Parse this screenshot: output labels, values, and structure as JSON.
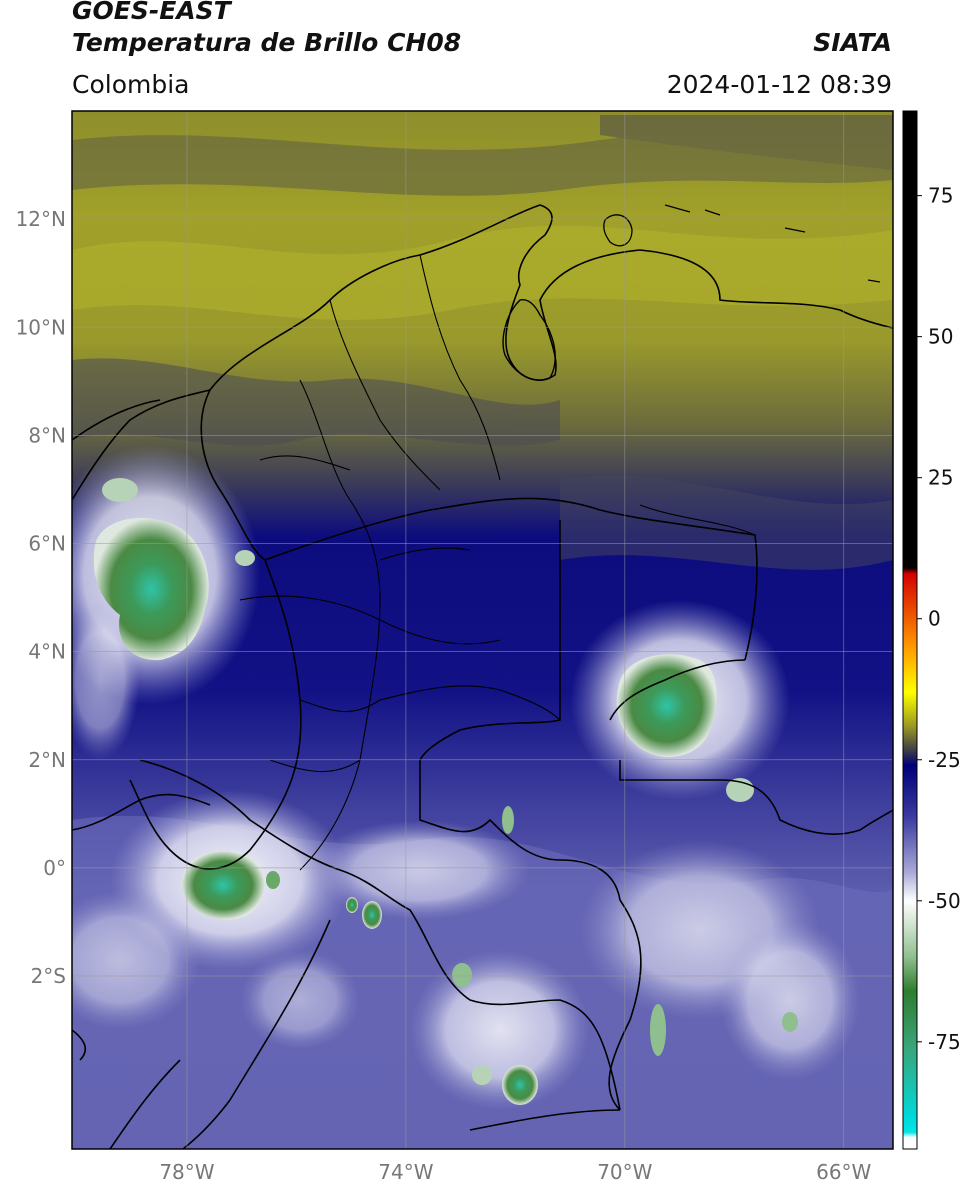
{
  "header": {
    "satellite": "GOES-EAST",
    "product": "Temperatura de Brillo CH08",
    "region": "Colombia",
    "brand": "SIATA",
    "timestamp": "2024-01-12 08:39"
  },
  "axes": {
    "lat_ticks": [
      {
        "label": "12°N",
        "lat": 12
      },
      {
        "label": "10°N",
        "lat": 10
      },
      {
        "label": "8°N",
        "lat": 8
      },
      {
        "label": "6°N",
        "lat": 6
      },
      {
        "label": "4°N",
        "lat": 4
      },
      {
        "label": "2°N",
        "lat": 2
      },
      {
        "label": "0°",
        "lat": 0
      },
      {
        "label": "2°S",
        "lat": -2
      }
    ],
    "lon_ticks": [
      {
        "label": "78°W",
        "lon": -78
      },
      {
        "label": "74°W",
        "lon": -74
      },
      {
        "label": "70°W",
        "lon": -70
      },
      {
        "label": "66°W",
        "lon": -66
      }
    ],
    "lon_range": [
      -80.1,
      -65.1
    ],
    "lat_range": [
      -5.2,
      14.0
    ],
    "grid": true
  },
  "colorbar": {
    "min": -94,
    "max": 90,
    "ticks": [
      75,
      50,
      25,
      0,
      -25,
      -50,
      -75
    ],
    "stops": [
      {
        "value": 90,
        "color": "#000000"
      },
      {
        "value": 9,
        "color": "#000000"
      },
      {
        "value": 8,
        "color": "#d40000"
      },
      {
        "value": -5,
        "color": "#ff9900"
      },
      {
        "value": -13,
        "color": "#ffff00"
      },
      {
        "value": -19,
        "color": "#9a9a22"
      },
      {
        "value": -23,
        "color": "#444444"
      },
      {
        "value": -26,
        "color": "#00007a"
      },
      {
        "value": -35,
        "color": "#3a3aa0"
      },
      {
        "value": -45,
        "color": "#aaaad8"
      },
      {
        "value": -50,
        "color": "#ffffff"
      },
      {
        "value": -60,
        "color": "#8fbf8f"
      },
      {
        "value": -66,
        "color": "#2e7d2e"
      },
      {
        "value": -76,
        "color": "#3aa57a"
      },
      {
        "value": -88,
        "color": "#00d8d8"
      },
      {
        "value": -91,
        "color": "#00e5e5"
      },
      {
        "value": -92,
        "color": "#ffffff"
      },
      {
        "value": -94,
        "color": "#ffffff"
      }
    ]
  },
  "colors": {
    "warm_dry": "#a8a82a",
    "mid": "#555555",
    "cold_band": "#0a0a80",
    "cloud_blue": "#5a5ab0",
    "cold_cloud_white": "#ffffff",
    "cold_core_green": "#3d8a3d",
    "coldest_cyan": "#30c8b0",
    "border": "#000000",
    "grid": "#9a9a9a"
  }
}
